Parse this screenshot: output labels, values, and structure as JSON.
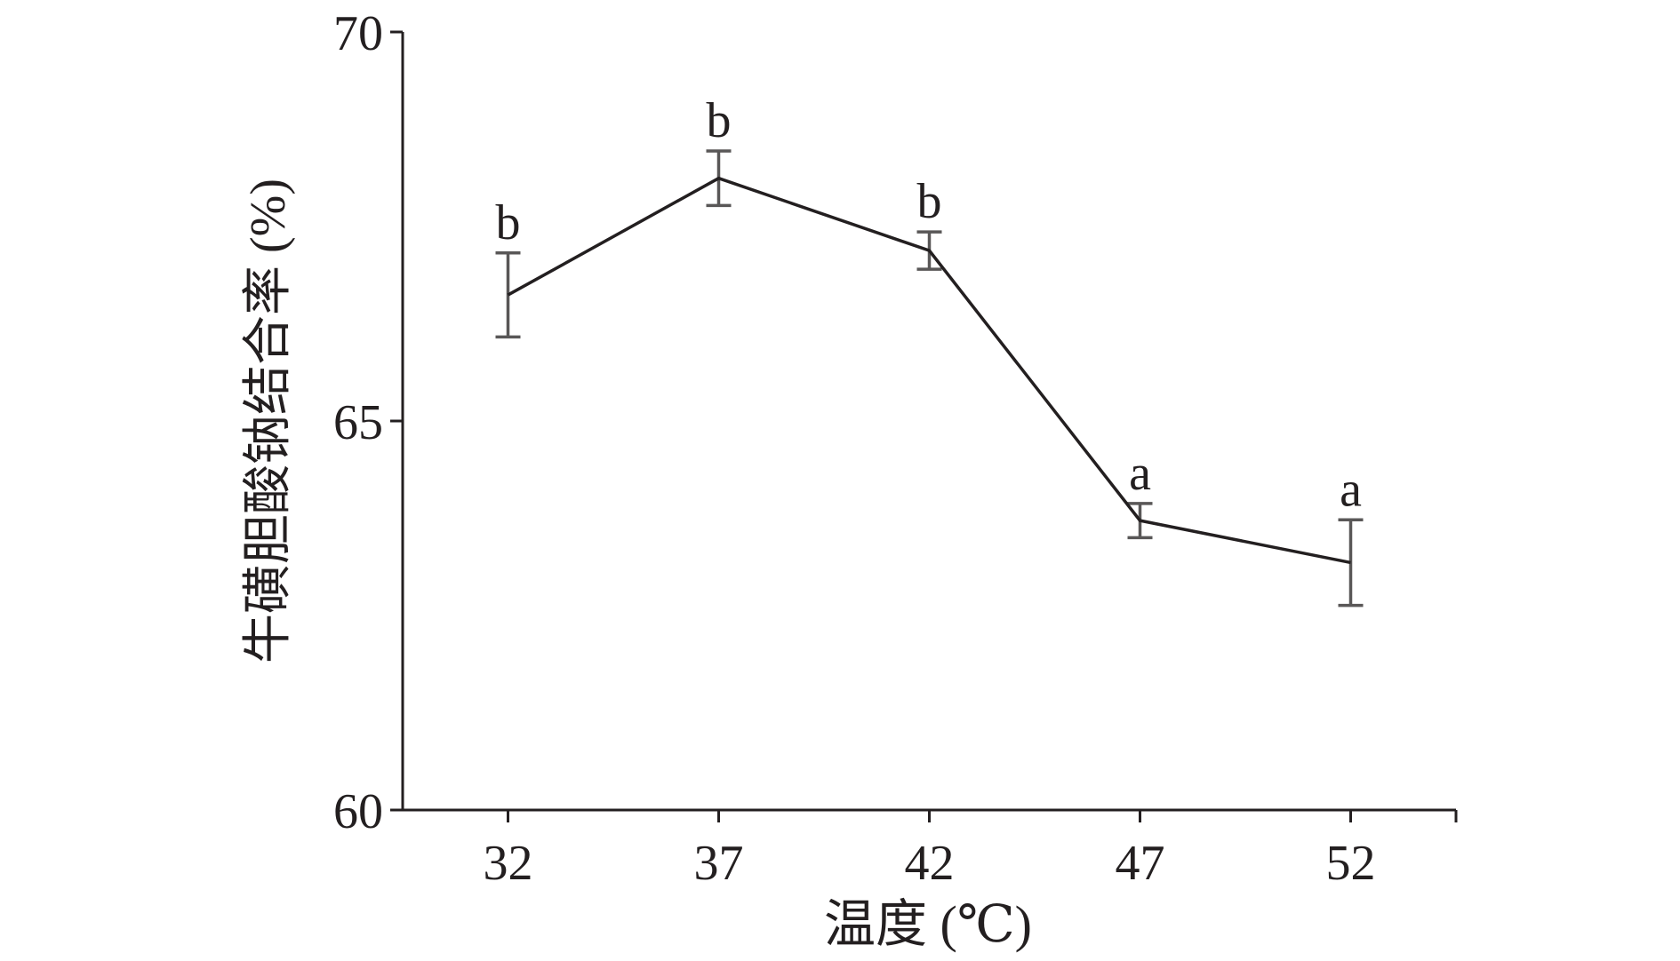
{
  "chart_data": {
    "type": "line",
    "xlabel": "温度 (℃)",
    "ylabel": "牛磺胆酸钠结合率 (%)",
    "x": [
      32,
      37,
      42,
      47,
      52
    ],
    "values": [
      66.62,
      68.12,
      67.19,
      63.72,
      63.18
    ],
    "errors": [
      0.54,
      0.35,
      0.24,
      0.22,
      0.55
    ],
    "annotations": [
      "b",
      "b",
      "b",
      "a",
      "a"
    ],
    "xlim": [
      29.5,
      54.5
    ],
    "xticks": [
      32,
      37,
      42,
      47,
      52
    ],
    "ylim": [
      60,
      70
    ],
    "yticks": [
      60,
      65,
      70
    ],
    "color": "#231f20",
    "error_color": "#595757"
  }
}
